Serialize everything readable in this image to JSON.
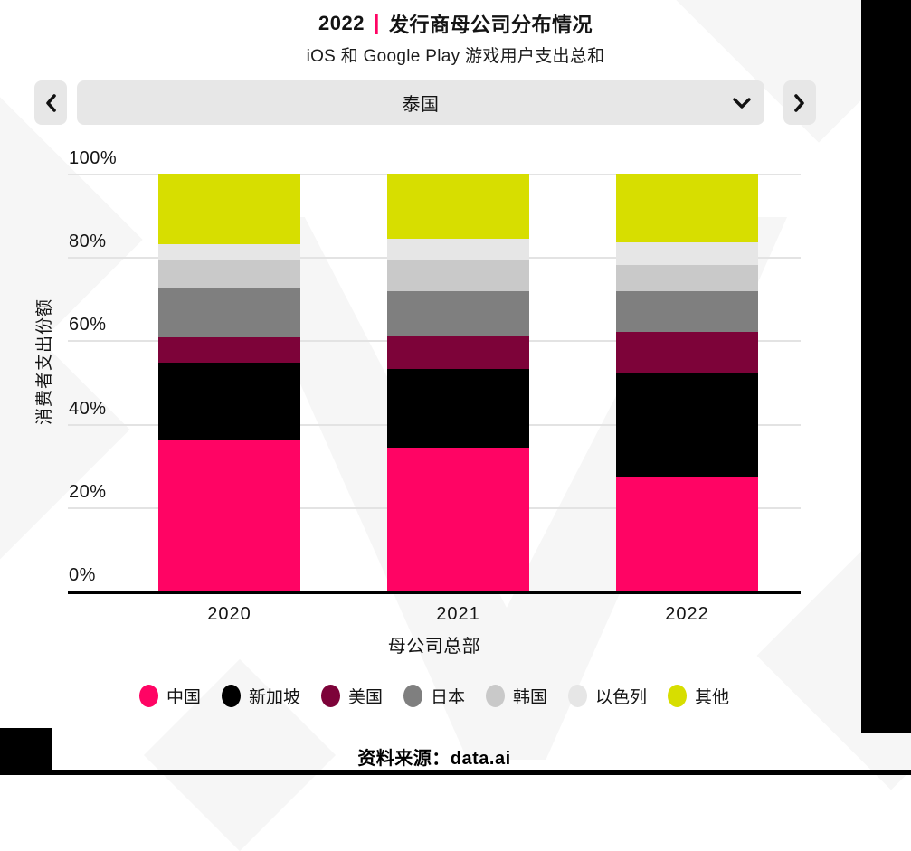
{
  "header": {
    "title_year": "2022",
    "title_divider": "|",
    "title_text": "发行商母公司分布情况",
    "subtitle": "iOS 和 Google Play 游戏用户支出总和"
  },
  "selector": {
    "value": "泰国",
    "prev_icon": "chevron-left",
    "next_icon": "chevron-right",
    "dropdown_icon": "chevron-down"
  },
  "chart_data": {
    "type": "bar",
    "stacked": true,
    "title": "2022 | 发行商母公司分布情况",
    "subtitle": "iOS 和 Google Play 游戏用户支出总和",
    "xlabel": "母公司总部",
    "ylabel": "消费者支出份额",
    "categories": [
      "2020",
      "2021",
      "2022"
    ],
    "yticks": [
      "100%",
      "80%",
      "60%",
      "40%",
      "20%",
      "0%"
    ],
    "ylim": [
      0,
      100
    ],
    "unit": "%",
    "grid": true,
    "legend_position": "bottom",
    "series": [
      {
        "name": "中国",
        "color": "#ff0464",
        "values": [
          36.0,
          34.3,
          27.4
        ]
      },
      {
        "name": "新加坡",
        "color": "#000000",
        "values": [
          18.7,
          18.8,
          24.6
        ]
      },
      {
        "name": "美国",
        "color": "#7d0339",
        "values": [
          6.0,
          8.1,
          10.1
        ]
      },
      {
        "name": "日本",
        "color": "#7f7f7f",
        "values": [
          11.9,
          10.5,
          9.8
        ]
      },
      {
        "name": "韩国",
        "color": "#c9c9c9",
        "values": [
          6.9,
          7.7,
          6.2
        ]
      },
      {
        "name": "以色列",
        "color": "#e6e6e6",
        "values": [
          3.5,
          5.0,
          5.4
        ]
      },
      {
        "name": "其他",
        "color": "#d7de00",
        "values": [
          17.0,
          15.6,
          16.5
        ]
      }
    ]
  },
  "footer": {
    "source": "资料来源：data.ai"
  }
}
